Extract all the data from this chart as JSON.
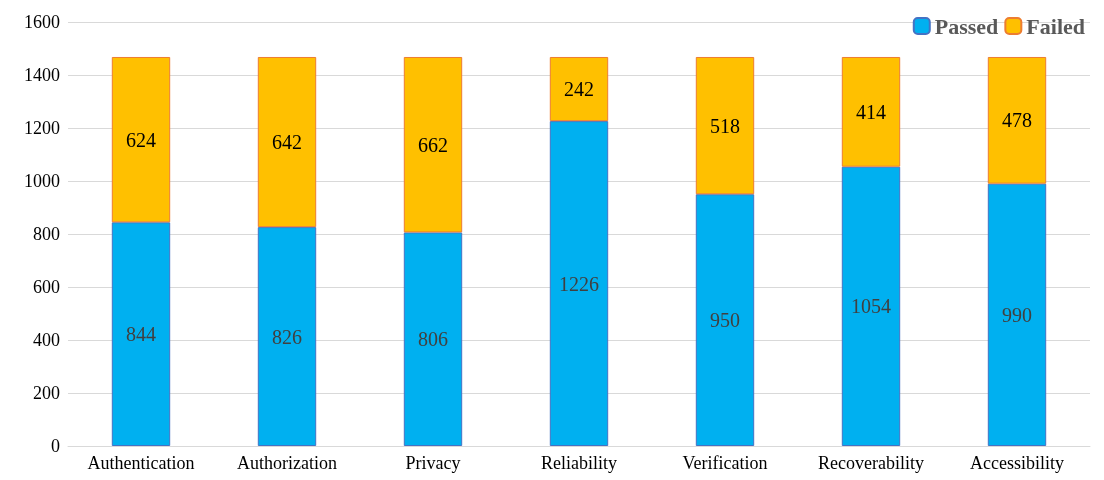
{
  "chart_data": {
    "type": "bar",
    "stacked": true,
    "categories": [
      "Authentication",
      "Authorization",
      "Privacy",
      "Reliability",
      "Verification",
      "Recoverability",
      "Accessibility"
    ],
    "series": [
      {
        "name": "Passed",
        "color": "#00b0f0",
        "values": [
          844,
          826,
          806,
          1226,
          950,
          1054,
          990
        ]
      },
      {
        "name": "Failed",
        "color": "#ffc000",
        "values": [
          624,
          642,
          662,
          242,
          518,
          414,
          478
        ]
      }
    ],
    "ylim": [
      0,
      1600
    ],
    "yticks": [
      0,
      200,
      400,
      600,
      800,
      1000,
      1200,
      1400,
      1600
    ],
    "grid": true,
    "legend": "top right",
    "data_labels": true
  }
}
